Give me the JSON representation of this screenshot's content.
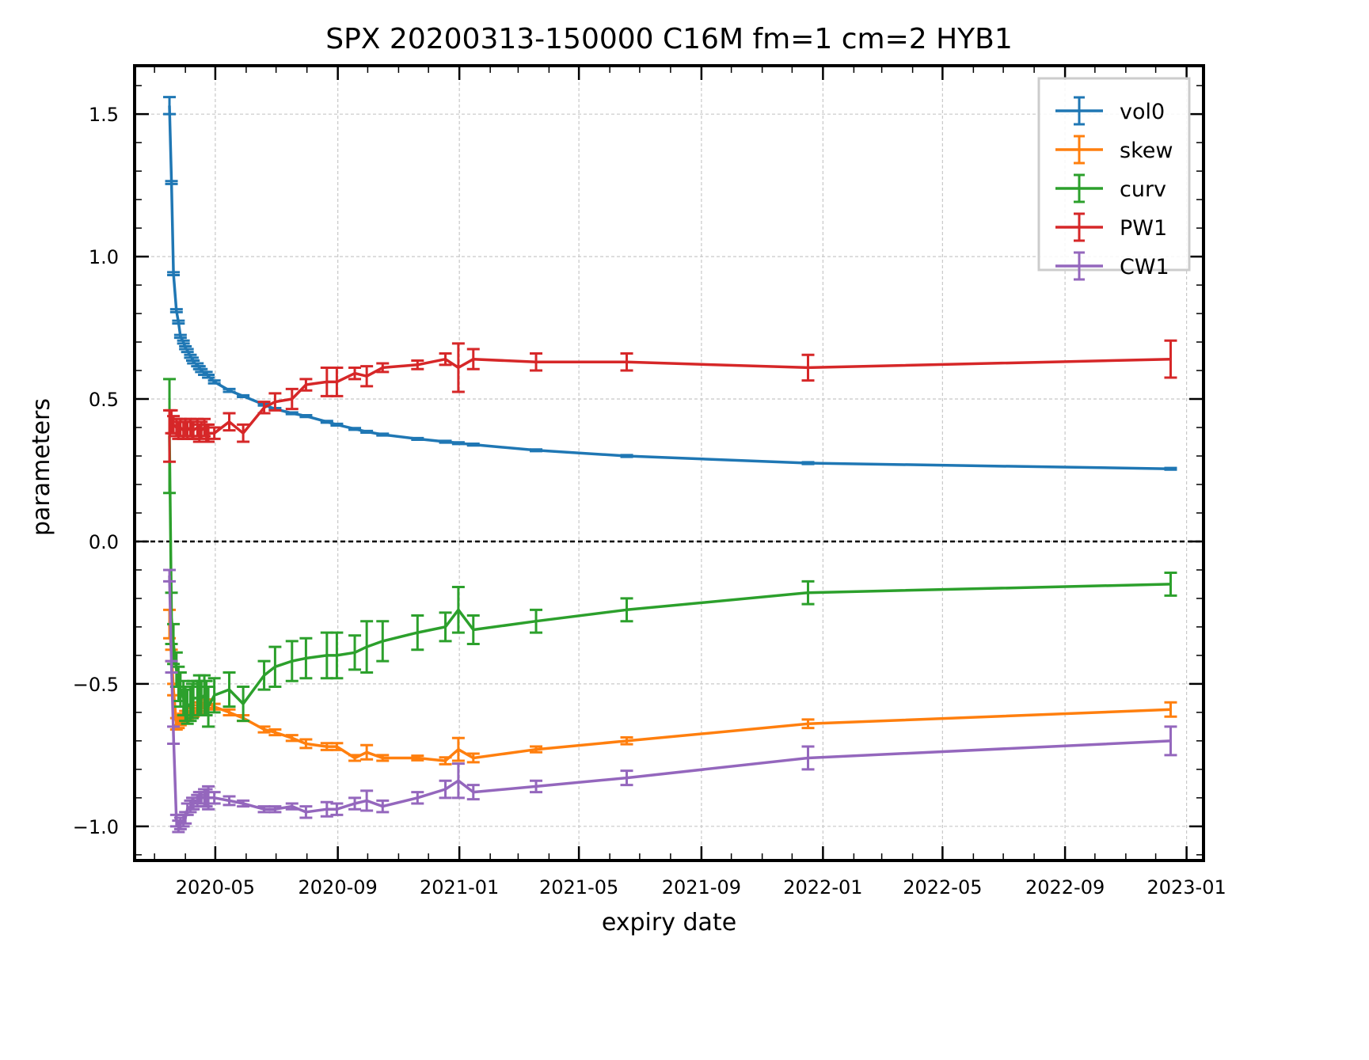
{
  "chart_data": {
    "type": "line",
    "title": "SPX 20200313-150000 C16M fm=1 cm=2 HYB1",
    "xlabel": "expiry date",
    "ylabel": "parameters",
    "xlim": [
      "2020-02-10",
      "2023-01-18"
    ],
    "ylim": [
      -1.12,
      1.67
    ],
    "grid": true,
    "legend_position": "top-right",
    "zero_line": true,
    "x_ticks": [
      "2020-05",
      "2020-09",
      "2021-01",
      "2021-05",
      "2021-09",
      "2022-01",
      "2022-05",
      "2022-09",
      "2023-01"
    ],
    "x_tick_dates": [
      "2020-05-01",
      "2020-09-01",
      "2021-01-01",
      "2021-05-01",
      "2021-09-01",
      "2022-01-01",
      "2022-05-01",
      "2022-09-01",
      "2023-01-01"
    ],
    "y_ticks": [
      1.5,
      1.0,
      0.5,
      0.0,
      -0.5,
      -1.0
    ],
    "y_tick_labels": [
      "1.5",
      "1.0",
      "0.5",
      "0.0",
      "−0.5",
      "−1.0"
    ],
    "x": [
      "2020-03-16",
      "2020-03-18",
      "2020-03-20",
      "2020-03-23",
      "2020-03-25",
      "2020-03-27",
      "2020-03-30",
      "2020-04-01",
      "2020-04-03",
      "2020-04-06",
      "2020-04-08",
      "2020-04-09",
      "2020-04-13",
      "2020-04-15",
      "2020-04-17",
      "2020-04-20",
      "2020-04-22",
      "2020-04-24",
      "2020-04-30",
      "2020-05-15",
      "2020-05-29",
      "2020-06-19",
      "2020-06-30",
      "2020-07-17",
      "2020-07-31",
      "2020-08-21",
      "2020-08-31",
      "2020-09-18",
      "2020-09-30",
      "2020-10-16",
      "2020-11-20",
      "2020-12-18",
      "2020-12-31",
      "2021-01-15",
      "2021-03-19",
      "2021-06-18",
      "2021-12-17",
      "2022-12-16"
    ],
    "series": [
      {
        "name": "vol0",
        "color": "#1f77b4",
        "values": [
          1.53,
          1.26,
          0.94,
          0.81,
          0.77,
          0.72,
          0.7,
          0.68,
          0.67,
          0.65,
          0.64,
          0.63,
          0.62,
          0.61,
          0.6,
          0.59,
          0.59,
          0.58,
          0.56,
          0.53,
          0.51,
          0.48,
          0.465,
          0.45,
          0.44,
          0.42,
          0.41,
          0.395,
          0.385,
          0.375,
          0.36,
          0.35,
          0.345,
          0.34,
          0.32,
          0.3,
          0.275,
          0.255
        ],
        "errors": [
          0.03,
          0.005,
          0.005,
          0.005,
          0.005,
          0.005,
          0.005,
          0.005,
          0.005,
          0.005,
          0.005,
          0.005,
          0.005,
          0.005,
          0.005,
          0.005,
          0.005,
          0.005,
          0.005,
          0.005,
          0.003,
          0.003,
          0.003,
          0.003,
          0.003,
          0.003,
          0.003,
          0.003,
          0.003,
          0.003,
          0.003,
          0.003,
          0.003,
          0.003,
          0.003,
          0.003,
          0.003,
          0.003
        ]
      },
      {
        "name": "skew",
        "color": "#ff7f0e",
        "values": [
          -0.29,
          -0.4,
          -0.52,
          -0.64,
          -0.64,
          -0.63,
          -0.62,
          -0.61,
          -0.61,
          -0.6,
          -0.6,
          -0.6,
          -0.59,
          -0.58,
          -0.58,
          -0.57,
          -0.57,
          -0.57,
          -0.58,
          -0.6,
          -0.62,
          -0.66,
          -0.67,
          -0.69,
          -0.71,
          -0.72,
          -0.72,
          -0.76,
          -0.74,
          -0.76,
          -0.76,
          -0.77,
          -0.73,
          -0.76,
          -0.73,
          -0.7,
          -0.64,
          -0.59
        ],
        "errors": [
          0.05,
          0.02,
          0.02,
          0.02,
          0.015,
          0.015,
          0.015,
          0.015,
          0.015,
          0.015,
          0.015,
          0.015,
          0.015,
          0.015,
          0.015,
          0.015,
          0.015,
          0.015,
          0.01,
          0.01,
          0.01,
          0.01,
          0.01,
          0.01,
          0.015,
          0.012,
          0.012,
          0.01,
          0.025,
          0.01,
          0.008,
          0.012,
          0.04,
          0.015,
          0.01,
          0.012,
          0.015,
          0.025
        ]
      },
      {
        "name": "curv",
        "color": "#2ca02c",
        "values": [
          0.37,
          -0.27,
          -0.36,
          -0.45,
          -0.5,
          -0.52,
          -0.55,
          -0.57,
          -0.58,
          -0.57,
          -0.56,
          -0.55,
          -0.55,
          -0.54,
          -0.55,
          -0.54,
          -0.55,
          -0.58,
          -0.54,
          -0.52,
          -0.57,
          -0.47,
          -0.44,
          -0.42,
          -0.41,
          -0.4,
          -0.4,
          -0.39,
          -0.37,
          -0.35,
          -0.32,
          -0.3,
          -0.24,
          -0.31,
          -0.28,
          -0.24,
          -0.18,
          -0.15
        ],
        "errors": [
          0.2,
          0.09,
          0.07,
          0.06,
          0.06,
          0.06,
          0.06,
          0.06,
          0.06,
          0.06,
          0.06,
          0.06,
          0.06,
          0.07,
          0.06,
          0.07,
          0.06,
          0.07,
          0.06,
          0.06,
          0.06,
          0.05,
          0.07,
          0.07,
          0.07,
          0.08,
          0.08,
          0.06,
          0.09,
          0.07,
          0.06,
          0.05,
          0.08,
          0.05,
          0.04,
          0.04,
          0.04,
          0.04
        ]
      },
      {
        "name": "PW1",
        "color": "#d62728",
        "values": [
          0.37,
          0.42,
          0.41,
          0.4,
          0.39,
          0.4,
          0.39,
          0.4,
          0.39,
          0.4,
          0.39,
          0.39,
          0.4,
          0.38,
          0.39,
          0.4,
          0.38,
          0.38,
          0.38,
          0.42,
          0.38,
          0.47,
          0.49,
          0.5,
          0.55,
          0.56,
          0.56,
          0.59,
          0.58,
          0.61,
          0.62,
          0.64,
          0.61,
          0.64,
          0.63,
          0.63,
          0.61,
          0.64
        ],
        "errors": [
          0.09,
          0.04,
          0.03,
          0.03,
          0.03,
          0.03,
          0.03,
          0.03,
          0.03,
          0.03,
          0.03,
          0.03,
          0.03,
          0.03,
          0.03,
          0.03,
          0.03,
          0.03,
          0.02,
          0.03,
          0.03,
          0.02,
          0.03,
          0.035,
          0.02,
          0.05,
          0.05,
          0.02,
          0.035,
          0.015,
          0.015,
          0.02,
          0.085,
          0.035,
          0.03,
          0.03,
          0.045,
          0.065
        ]
      },
      {
        "name": "CW1",
        "color": "#9467bd",
        "values": [
          -0.12,
          -0.44,
          -0.68,
          -0.98,
          -1.0,
          -0.99,
          -0.98,
          -0.97,
          -0.94,
          -0.93,
          -0.92,
          -0.92,
          -0.91,
          -0.9,
          -0.9,
          -0.9,
          -0.9,
          -0.9,
          -0.9,
          -0.91,
          -0.92,
          -0.94,
          -0.94,
          -0.93,
          -0.95,
          -0.94,
          -0.94,
          -0.92,
          -0.91,
          -0.93,
          -0.9,
          -0.87,
          -0.84,
          -0.88,
          -0.86,
          -0.83,
          -0.76,
          -0.7
        ],
        "errors": [
          0.02,
          0.02,
          0.03,
          0.02,
          0.02,
          0.02,
          0.02,
          0.02,
          0.02,
          0.02,
          0.02,
          0.02,
          0.02,
          0.02,
          0.02,
          0.03,
          0.03,
          0.04,
          0.02,
          0.015,
          0.01,
          0.01,
          0.01,
          0.01,
          0.02,
          0.025,
          0.02,
          0.02,
          0.035,
          0.02,
          0.02,
          0.03,
          0.06,
          0.025,
          0.02,
          0.025,
          0.04,
          0.05
        ]
      }
    ]
  }
}
